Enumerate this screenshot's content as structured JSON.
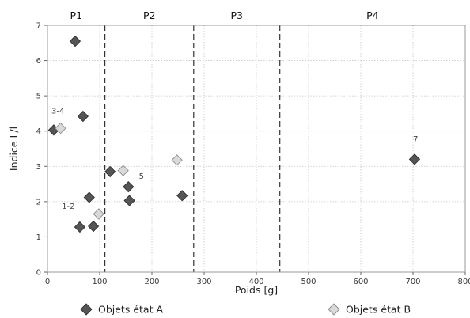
{
  "chart_data": {
    "type": "scatter",
    "title": "",
    "xlabel": "Poids [g]",
    "ylabel": "Indice L/l",
    "xlim": [
      0,
      800
    ],
    "ylim": [
      0,
      7
    ],
    "xticks": [
      0,
      100,
      200,
      300,
      400,
      500,
      600,
      700,
      800
    ],
    "xtick_labels": [
      "0",
      "100",
      "200",
      "300",
      "400",
      "500",
      "600",
      "700",
      "800"
    ],
    "yticks": [
      0,
      1,
      2,
      3,
      4,
      5,
      6,
      7
    ],
    "ytick_labels": [
      "0",
      "1",
      "2",
      "3",
      "4",
      "5",
      "6",
      "7"
    ],
    "grid": "dotted",
    "periods": [
      {
        "label": "P1",
        "from": 0,
        "to": 110
      },
      {
        "label": "P2",
        "from": 110,
        "to": 280
      },
      {
        "label": "P3",
        "from": 280,
        "to": 445
      },
      {
        "label": "P4",
        "from": 445,
        "to": 800
      }
    ],
    "dividers": [
      110,
      280,
      445
    ],
    "annotations": [
      {
        "text": "3-4",
        "x": 20,
        "y": 4.5
      },
      {
        "text": "1-2",
        "x": 40,
        "y": 1.8
      },
      {
        "text": "5",
        "x": 180,
        "y": 2.65
      },
      {
        "text": "7",
        "x": 705,
        "y": 3.7
      }
    ],
    "series": [
      {
        "name": "Objets état A",
        "color": "#555555",
        "points": [
          [
            53,
            6.55
          ],
          [
            68,
            4.42
          ],
          [
            12,
            4.03
          ],
          [
            120,
            2.85
          ],
          [
            155,
            2.42
          ],
          [
            80,
            2.12
          ],
          [
            157,
            2.03
          ],
          [
            258,
            2.17
          ],
          [
            62,
            1.28
          ],
          [
            88,
            1.3
          ],
          [
            703,
            3.2
          ]
        ]
      },
      {
        "name": "Objets état B",
        "color": "#d9d9d9",
        "points": [
          [
            25,
            4.08
          ],
          [
            145,
            2.88
          ],
          [
            248,
            3.18
          ],
          [
            98,
            1.65
          ]
        ]
      }
    ],
    "legend": "bottom"
  }
}
